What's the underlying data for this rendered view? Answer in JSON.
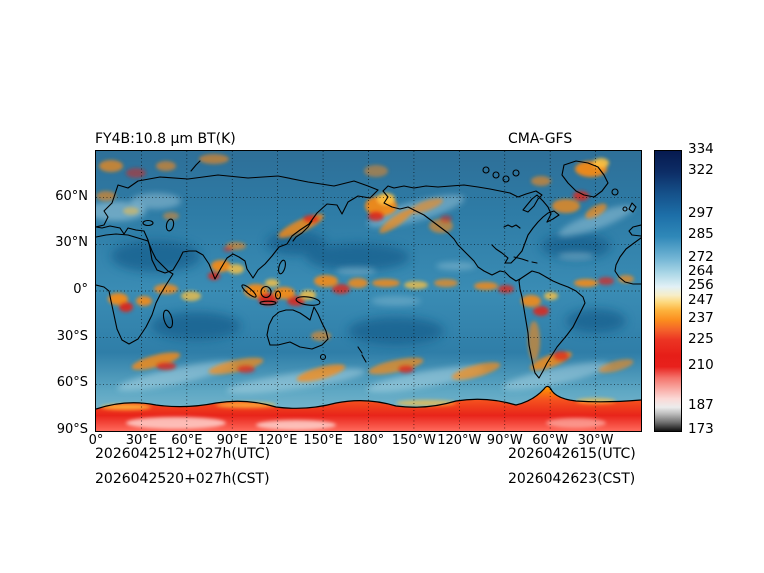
{
  "figure": {
    "title_left": "FY4B:10.8 μm BT(K)",
    "title_right": "CMA-GFS"
  },
  "axes": {
    "lat_ticks": [
      "60°N",
      "30°N",
      "0°",
      "30°S",
      "60°S",
      "90°S"
    ],
    "lon_ticks": [
      "0°",
      "30°E",
      "60°E",
      "90°E",
      "120°E",
      "150°E",
      "180°",
      "150°W",
      "120°W",
      "90°W",
      "60°W",
      "30°W"
    ]
  },
  "colorbar": {
    "vmin": 173,
    "vmax": 334,
    "ticks": [
      334,
      322,
      297,
      285,
      272,
      264,
      256,
      247,
      237,
      225,
      210,
      187,
      173
    ],
    "gradient": [
      {
        "at": 0,
        "color": "#061a4f"
      },
      {
        "at": 7.5,
        "color": "#0d2d66"
      },
      {
        "at": 15,
        "color": "#155089"
      },
      {
        "at": 23,
        "color": "#1d6fa8"
      },
      {
        "at": 30.5,
        "color": "#2f88b8"
      },
      {
        "at": 38.5,
        "color": "#74b6d5"
      },
      {
        "at": 43.5,
        "color": "#a9d6e6"
      },
      {
        "at": 48.5,
        "color": "#e2f1f6"
      },
      {
        "at": 51.5,
        "color": "#f7eec8"
      },
      {
        "at": 54,
        "color": "#fdd97e"
      },
      {
        "at": 57,
        "color": "#fdb23c"
      },
      {
        "at": 60.5,
        "color": "#fb8c1e"
      },
      {
        "at": 64,
        "color": "#f4612a"
      },
      {
        "at": 67.5,
        "color": "#ec3423"
      },
      {
        "at": 73,
        "color": "#e61e18"
      },
      {
        "at": 77,
        "color": "#e8201c"
      },
      {
        "at": 81,
        "color": "#f4736b"
      },
      {
        "at": 85,
        "color": "#f9aba5"
      },
      {
        "at": 88.5,
        "color": "#fbd9d6"
      },
      {
        "at": 91.5,
        "color": "#ececec"
      },
      {
        "at": 94,
        "color": "#b9b9b9"
      },
      {
        "at": 97,
        "color": "#6e6e6e"
      },
      {
        "at": 100,
        "color": "#111111"
      }
    ]
  },
  "footer": {
    "init_utc": "2026042512+027h(UTC)",
    "valid_utc": "2026042615(UTC)",
    "init_cst": "2026042520+027h(CST)",
    "valid_cst": "2026042623(CST)"
  },
  "chart_data": {
    "type": "heatmap",
    "title": "FY4B:10.8 μm BT(K)",
    "model_label": "CMA-GFS",
    "variable": "FY-4B 10.8 μm simulated infrared brightness temperature",
    "units": "K",
    "projection": "global equirectangular, longitude 0°E to 360°E (180° at center), latitude 90°N to 90°S",
    "x_tick_labels": [
      "0°",
      "30°E",
      "60°E",
      "90°E",
      "120°E",
      "150°E",
      "180°",
      "150°W",
      "120°W",
      "90°W",
      "60°W",
      "30°W"
    ],
    "y_tick_labels": [
      "60°N",
      "30°N",
      "0°",
      "30°S",
      "60°S",
      "90°S"
    ],
    "colorbar_ticks": [
      334,
      322,
      297,
      285,
      272,
      264,
      256,
      247,
      237,
      225,
      210,
      187,
      173
    ],
    "colorbar_range": [
      173,
      334
    ],
    "colorbar_orientation": "vertical-right",
    "grid": "dotted 30-degree graticule",
    "legend_position": "right",
    "annotations": [
      "2026042512+027h(UTC)",
      "2026042615(UTC)",
      "2026042520+027h(CST)",
      "2026042623(CST)"
    ]
  }
}
